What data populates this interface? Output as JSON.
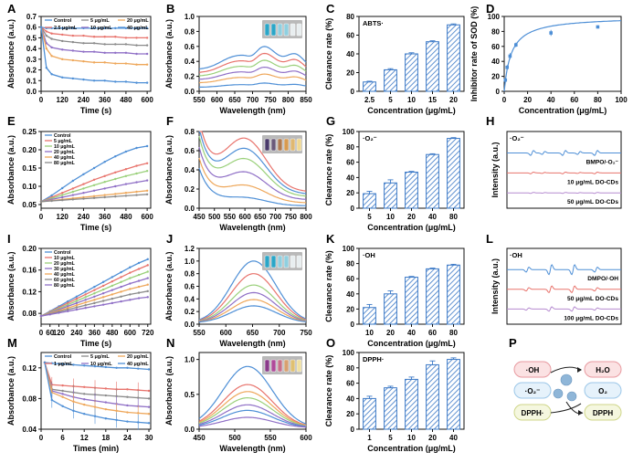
{
  "figure": {
    "colors": {
      "blue": "#4e8fd6",
      "red": "#e8736c",
      "orange": "#eea75a",
      "green": "#9ad07a",
      "purple": "#8f6fc6",
      "gray": "#8a8a8a",
      "violet": "#b58ad0",
      "hatch": "#3a78c6",
      "axis": "#111111"
    },
    "panelP": {
      "label": "P",
      "left_items": [
        "·OH",
        "·O₂⁻",
        "DPPH·"
      ],
      "right_items": [
        "H₂O",
        "O₂",
        "DPPH"
      ]
    }
  },
  "chart_data": [
    {
      "panel": "A",
      "type": "line",
      "xlabel": "Time (s)",
      "ylabel": "Absorbance (a.u.)",
      "xlim": [
        0,
        620
      ],
      "ylim": [
        0,
        0.7
      ],
      "xticks": [
        0,
        120,
        240,
        360,
        480,
        600
      ],
      "yticks": [
        0.0,
        0.1,
        0.2,
        0.3,
        0.4,
        0.5,
        0.6,
        0.7
      ],
      "legend": [
        "Control",
        "2.5 μg/mL",
        "5 μg/mL",
        "10 μg/mL",
        "20 μg/mL",
        "40 μg/mL"
      ],
      "legend_cols": 3,
      "x": [
        0,
        30,
        60,
        120,
        180,
        240,
        300,
        360,
        420,
        480,
        540,
        600
      ],
      "series": [
        {
          "name": "Control",
          "color": "blue",
          "values": [
            0.6,
            0.59,
            0.59,
            0.59,
            0.59,
            0.59,
            0.59,
            0.59,
            0.59,
            0.59,
            0.59,
            0.59
          ]
        },
        {
          "name": "2.5 μg/mL",
          "color": "red",
          "values": [
            0.6,
            0.56,
            0.54,
            0.53,
            0.52,
            0.52,
            0.51,
            0.51,
            0.51,
            0.5,
            0.5,
            0.5
          ]
        },
        {
          "name": "5 μg/mL",
          "color": "gray",
          "values": [
            0.6,
            0.52,
            0.49,
            0.47,
            0.46,
            0.45,
            0.45,
            0.44,
            0.44,
            0.44,
            0.43,
            0.43
          ]
        },
        {
          "name": "10 μg/mL",
          "color": "purple",
          "values": [
            0.6,
            0.45,
            0.41,
            0.39,
            0.38,
            0.37,
            0.37,
            0.36,
            0.36,
            0.36,
            0.35,
            0.35
          ]
        },
        {
          "name": "20 μg/mL",
          "color": "orange",
          "values": [
            0.6,
            0.4,
            0.33,
            0.3,
            0.29,
            0.28,
            0.27,
            0.27,
            0.26,
            0.26,
            0.25,
            0.25
          ]
        },
        {
          "name": "40 μg/mL",
          "color": "blue",
          "values": [
            0.6,
            0.22,
            0.16,
            0.13,
            0.12,
            0.11,
            0.1,
            0.1,
            0.09,
            0.09,
            0.08,
            0.08
          ]
        }
      ]
    },
    {
      "panel": "B",
      "type": "spectrum",
      "xlabel": "Wavelength (nm)",
      "ylabel": "Absorbance (a.u.)",
      "xlim": [
        550,
        850
      ],
      "ylim": [
        0,
        1.0
      ],
      "xticks": [
        550,
        600,
        650,
        700,
        750,
        800,
        850
      ],
      "yticks": [
        0.0,
        0.2,
        0.4,
        0.6,
        0.8,
        1.0
      ],
      "shape": "abts",
      "center": 734,
      "amplitudes": [
        0.65,
        0.55,
        0.45,
        0.35,
        0.25,
        0.12
      ],
      "colors": [
        "blue",
        "red",
        "green",
        "purple",
        "orange",
        "blue"
      ]
    },
    {
      "panel": "C",
      "type": "bar",
      "annotation": "ABTS·",
      "xlabel": "Concentration (μg/mL)",
      "ylabel": "Clearance rate (%)",
      "categories": [
        "2.5",
        "5",
        "10",
        "15",
        "20"
      ],
      "values": [
        10,
        23,
        40,
        53,
        71
      ],
      "errors": [
        0.8,
        1.2,
        1.2,
        1.0,
        1.0
      ],
      "ylim": [
        0,
        80
      ],
      "yticks": [
        0,
        20,
        40,
        60,
        80
      ]
    },
    {
      "panel": "D",
      "type": "scatter-fit",
      "xlabel": "Concentration (μg/mL)",
      "ylabel": "Inhibitor rate of SOD (%)",
      "xlim": [
        0,
        100
      ],
      "ylim": [
        0,
        100
      ],
      "xticks": [
        0,
        20,
        40,
        60,
        80,
        100
      ],
      "yticks": [
        0,
        20,
        40,
        60,
        80,
        100
      ],
      "x": [
        1,
        2.5,
        5,
        10,
        40,
        80
      ],
      "y": [
        15,
        32,
        47,
        62,
        78,
        86
      ],
      "errors": [
        2,
        3,
        4,
        3,
        4,
        2
      ],
      "fit": {
        "max": 100,
        "k": 6
      }
    },
    {
      "panel": "E",
      "type": "line",
      "xlabel": "Time (s)",
      "ylabel": "Absorbance (a.u.)",
      "xlim": [
        0,
        620
      ],
      "ylim": [
        0.04,
        0.25
      ],
      "xticks": [
        0,
        120,
        240,
        360,
        480,
        600
      ],
      "yticks": [
        0.05,
        0.1,
        0.15,
        0.2,
        0.25
      ],
      "legend": [
        "Control",
        "5 μg/mL",
        "10 μg/mL",
        "20 μg/mL",
        "40 μg/mL",
        "80 μg/mL"
      ],
      "legend_cols": 1,
      "x": [
        0,
        60,
        120,
        180,
        240,
        300,
        360,
        420,
        480,
        540,
        600
      ],
      "series": [
        {
          "name": "Control",
          "color": "blue",
          "values": [
            0.058,
            0.075,
            0.095,
            0.115,
            0.133,
            0.15,
            0.167,
            0.182,
            0.195,
            0.205,
            0.21
          ]
        },
        {
          "name": "5 μg/mL",
          "color": "red",
          "values": [
            0.058,
            0.07,
            0.082,
            0.094,
            0.106,
            0.118,
            0.128,
            0.138,
            0.147,
            0.156,
            0.163
          ]
        },
        {
          "name": "10 μg/mL",
          "color": "green",
          "values": [
            0.058,
            0.067,
            0.076,
            0.085,
            0.094,
            0.103,
            0.112,
            0.12,
            0.128,
            0.135,
            0.142
          ]
        },
        {
          "name": "20 μg/mL",
          "color": "purple",
          "values": [
            0.058,
            0.064,
            0.07,
            0.076,
            0.082,
            0.088,
            0.094,
            0.1,
            0.106,
            0.111,
            0.116
          ]
        },
        {
          "name": "40 μg/mL",
          "color": "orange",
          "values": [
            0.058,
            0.061,
            0.064,
            0.067,
            0.07,
            0.073,
            0.076,
            0.079,
            0.082,
            0.085,
            0.088
          ]
        },
        {
          "name": "80 μg/mL",
          "color": "gray",
          "values": [
            0.058,
            0.06,
            0.062,
            0.064,
            0.066,
            0.068,
            0.07,
            0.072,
            0.074,
            0.076,
            0.078
          ]
        }
      ]
    },
    {
      "panel": "F",
      "type": "spectrum",
      "xlabel": "Wavelength (nm)",
      "ylabel": "Absorbance (a.u.)",
      "xlim": [
        450,
        800
      ],
      "ylim": [
        0,
        0.8
      ],
      "xticks": [
        450,
        500,
        550,
        600,
        650,
        700,
        750,
        800
      ],
      "yticks": [
        0.0,
        0.2,
        0.4,
        0.6,
        0.8
      ],
      "shape": "nbt",
      "center": 600,
      "amplitudes": [
        0.68,
        0.58,
        0.48,
        0.35,
        0.22,
        0.1
      ],
      "colors": [
        "red",
        "blue",
        "green",
        "purple",
        "orange",
        "blue"
      ]
    },
    {
      "panel": "G",
      "type": "bar",
      "annotation": "·O₂⁻",
      "xlabel": "Concentration (μg/mL)",
      "ylabel": "Clearance rate (%)",
      "categories": [
        "5",
        "10",
        "20",
        "40",
        "80"
      ],
      "values": [
        19,
        33,
        47,
        70,
        91
      ],
      "errors": [
        3,
        4,
        1,
        1,
        1
      ],
      "ylim": [
        0,
        100
      ],
      "yticks": [
        0,
        20,
        40,
        60,
        80,
        100
      ]
    },
    {
      "panel": "H",
      "type": "esr",
      "annotation": "·O₂⁻",
      "ylabel": "Intensity (a.u.)",
      "traces": [
        {
          "label": "BMPO/·O₂⁻",
          "color": "blue",
          "amp": 9
        },
        {
          "label": "10 μg/mL DO-CDs",
          "color": "red",
          "amp": 3
        },
        {
          "label": "50 μg/mL DO-CDs",
          "color": "violet",
          "amp": 1.8
        }
      ],
      "pattern": "o2"
    },
    {
      "panel": "I",
      "type": "line",
      "xlabel": "Time (s)",
      "ylabel": "Absorbance (a.u.)",
      "xlim": [
        0,
        740
      ],
      "ylim": [
        0.06,
        0.2
      ],
      "xticks": [
        0,
        60,
        120,
        180,
        240,
        300,
        360,
        420,
        480,
        540,
        600,
        660,
        720
      ],
      "xticklabels": [
        "0",
        "60",
        "120",
        "240",
        "360",
        "480",
        "600",
        "720"
      ],
      "xticklabel_positions": [
        0,
        60,
        120,
        240,
        360,
        480,
        600,
        720
      ],
      "yticks": [
        0.08,
        0.12,
        0.16,
        0.2
      ],
      "legend": [
        "Control",
        "10 μg/mL",
        "20 μg/mL",
        "30 μg/mL",
        "40 μg/mL",
        "60 μg/mL",
        "80 μg/mL"
      ],
      "legend_cols": 1,
      "x": [
        0,
        60,
        120,
        180,
        240,
        300,
        360,
        420,
        480,
        540,
        600,
        660,
        720
      ],
      "series": [
        {
          "name": "Control",
          "color": "blue",
          "values": [
            0.075,
            0.084,
            0.093,
            0.102,
            0.111,
            0.12,
            0.129,
            0.138,
            0.147,
            0.156,
            0.165,
            0.173,
            0.18
          ]
        },
        {
          "name": "10 μg/mL",
          "color": "red",
          "values": [
            0.075,
            0.083,
            0.091,
            0.099,
            0.107,
            0.115,
            0.123,
            0.131,
            0.139,
            0.147,
            0.155,
            0.162,
            0.169
          ]
        },
        {
          "name": "20 μg/mL",
          "color": "green",
          "values": [
            0.075,
            0.082,
            0.089,
            0.096,
            0.103,
            0.11,
            0.117,
            0.124,
            0.131,
            0.138,
            0.145,
            0.151,
            0.157
          ]
        },
        {
          "name": "30 μg/mL",
          "color": "purple",
          "values": [
            0.075,
            0.081,
            0.087,
            0.093,
            0.099,
            0.105,
            0.111,
            0.117,
            0.123,
            0.129,
            0.135,
            0.14,
            0.145
          ]
        },
        {
          "name": "40 μg/mL",
          "color": "orange",
          "values": [
            0.075,
            0.08,
            0.085,
            0.09,
            0.095,
            0.1,
            0.105,
            0.11,
            0.115,
            0.12,
            0.125,
            0.129,
            0.133
          ]
        },
        {
          "name": "60 μg/mL",
          "color": "gray",
          "values": [
            0.075,
            0.079,
            0.083,
            0.087,
            0.091,
            0.095,
            0.099,
            0.103,
            0.107,
            0.111,
            0.115,
            0.118,
            0.121
          ]
        },
        {
          "name": "80 μg/mL",
          "color": "purple",
          "values": [
            0.075,
            0.078,
            0.081,
            0.084,
            0.087,
            0.09,
            0.093,
            0.096,
            0.099,
            0.102,
            0.105,
            0.108,
            0.11
          ]
        }
      ]
    },
    {
      "panel": "J",
      "type": "spectrum",
      "xlabel": "Wavelength (nm)",
      "ylabel": "Absorbance (a.u.)",
      "xlim": [
        550,
        750
      ],
      "ylim": [
        0,
        1.2
      ],
      "xticks": [
        550,
        600,
        650,
        700,
        750
      ],
      "yticks": [
        0.0,
        0.2,
        0.4,
        0.6,
        0.8,
        1.0,
        1.2
      ],
      "shape": "tmb",
      "center": 652,
      "amplitudes": [
        0.98,
        0.78,
        0.6,
        0.48,
        0.37,
        0.27
      ],
      "colors": [
        "blue",
        "red",
        "green",
        "purple",
        "orange",
        "blue"
      ]
    },
    {
      "panel": "K",
      "type": "bar",
      "annotation": "·OH",
      "xlabel": "Concentration (μg/mL)",
      "ylabel": "Clearance rate (%)",
      "categories": [
        "10",
        "20",
        "40",
        "60",
        "80"
      ],
      "values": [
        22,
        40,
        62,
        73,
        78
      ],
      "errors": [
        4,
        4,
        1,
        1,
        1
      ],
      "ylim": [
        0,
        100
      ],
      "yticks": [
        0,
        20,
        40,
        60,
        80,
        100
      ]
    },
    {
      "panel": "L",
      "type": "esr",
      "annotation": "·OH",
      "ylabel": "Intensity (a.u.)",
      "traces": [
        {
          "label": "DMPO/·OH",
          "color": "blue",
          "amp": 9
        },
        {
          "label": "50 μg/mL DO-CDs",
          "color": "red",
          "amp": 6
        },
        {
          "label": "100 μg/mL DO-CDs",
          "color": "violet",
          "amp": 4
        }
      ],
      "pattern": "oh"
    },
    {
      "panel": "M",
      "type": "line",
      "xlabel": "Times (min)",
      "ylabel": "Absorbance (a.u.)",
      "xlim": [
        0,
        30.5
      ],
      "ylim": [
        0.04,
        0.14
      ],
      "xticks": [
        0,
        6,
        12,
        18,
        24,
        30
      ],
      "yticks": [
        0.04,
        0.08,
        0.12
      ],
      "legend": [
        "Control",
        "1 μg/mL",
        "5 μg/mL",
        "10 μg/mL",
        "20 μg/mL",
        "40 μg/mL"
      ],
      "legend_cols": 3,
      "x": [
        1,
        3,
        6,
        9,
        12,
        15,
        18,
        21,
        24,
        27,
        30
      ],
      "series": [
        {
          "name": "Control",
          "color": "blue",
          "values": [
            0.127,
            0.126,
            0.125,
            0.124,
            0.123,
            0.122,
            0.121,
            0.12,
            0.12,
            0.119,
            0.118
          ]
        },
        {
          "name": "1 μg/mL",
          "color": "red",
          "values": [
            0.127,
            0.098,
            0.097,
            0.096,
            0.095,
            0.094,
            0.093,
            0.092,
            0.092,
            0.091,
            0.09
          ]
        },
        {
          "name": "5 μg/mL",
          "color": "gray",
          "values": [
            0.127,
            0.092,
            0.09,
            0.088,
            0.086,
            0.085,
            0.084,
            0.083,
            0.082,
            0.081,
            0.08
          ]
        },
        {
          "name": "10 μg/mL",
          "color": "purple",
          "values": [
            0.127,
            0.09,
            0.086,
            0.082,
            0.079,
            0.077,
            0.075,
            0.073,
            0.071,
            0.07,
            0.069
          ]
        },
        {
          "name": "20 μg/mL",
          "color": "orange",
          "values": [
            0.127,
            0.088,
            0.082,
            0.076,
            0.072,
            0.069,
            0.066,
            0.064,
            0.062,
            0.061,
            0.06
          ]
        },
        {
          "name": "40 μg/mL",
          "color": "blue",
          "values": [
            0.127,
            0.078,
            0.07,
            0.064,
            0.06,
            0.057,
            0.054,
            0.052,
            0.05,
            0.049,
            0.048
          ]
        }
      ]
    },
    {
      "panel": "N",
      "type": "spectrum",
      "xlabel": "Wavelength (nm)",
      "ylabel": "Absorbance (a.u.)",
      "xlim": [
        450,
        600
      ],
      "ylim": [
        0,
        1.1
      ],
      "xticks": [
        450,
        500,
        550,
        600
      ],
      "yticks": [
        0.0,
        0.5,
        1.0
      ],
      "shape": "dpph",
      "center": 518,
      "amplitudes": [
        0.88,
        0.62,
        0.52,
        0.43,
        0.33,
        0.25,
        0.15
      ],
      "colors": [
        "blue",
        "red",
        "orange",
        "green",
        "purple",
        "blue",
        "purple"
      ]
    },
    {
      "panel": "O",
      "type": "bar",
      "annotation": "DPPH·",
      "xlabel": "Concentration (μg/mL)",
      "ylabel": "Clearance rate (%)",
      "categories": [
        "1",
        "5",
        "10",
        "20",
        "40"
      ],
      "values": [
        40,
        54,
        65,
        84,
        91
      ],
      "errors": [
        3,
        2,
        3,
        5,
        2
      ],
      "ylim": [
        0,
        100
      ],
      "yticks": [
        0,
        20,
        40,
        60,
        80,
        100
      ]
    }
  ]
}
